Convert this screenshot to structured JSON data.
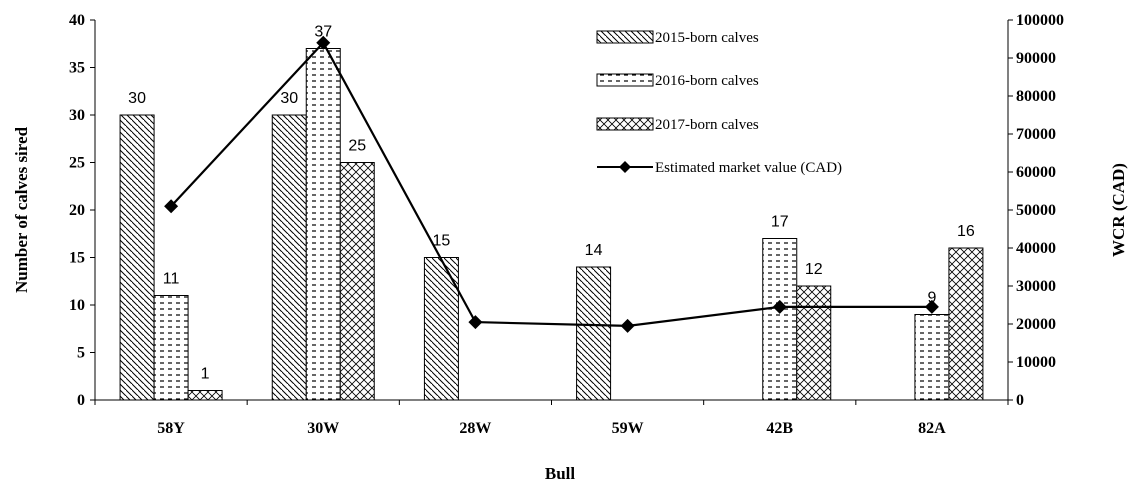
{
  "chart_data": {
    "type": "bar",
    "categories": [
      "58Y",
      "30W",
      "28W",
      "59W",
      "42B",
      "82A"
    ],
    "series": [
      {
        "name": "2015-born calves",
        "kind": "bar",
        "pattern": "diagonal-down",
        "values": [
          30,
          30,
          15,
          14,
          0,
          0
        ]
      },
      {
        "name": "2016-born calves",
        "kind": "bar",
        "pattern": "dashed-horizontal",
        "values": [
          11,
          37,
          0,
          0,
          17,
          9
        ]
      },
      {
        "name": "2017-born calves",
        "kind": "bar",
        "pattern": "crosshatch",
        "values": [
          1,
          25,
          0,
          0,
          12,
          16
        ]
      },
      {
        "name": "Estimated market value (CAD)",
        "kind": "line",
        "marker": "diamond",
        "axis": "right",
        "values": [
          51000,
          94000,
          20500,
          19500,
          24500,
          24500
        ]
      }
    ],
    "data_labels": [
      {
        "category": "58Y",
        "series": 0,
        "text": "30"
      },
      {
        "category": "58Y",
        "series": 1,
        "text": "11"
      },
      {
        "category": "58Y",
        "series": 2,
        "text": "1"
      },
      {
        "category": "30W",
        "series": 0,
        "text": "30"
      },
      {
        "category": "30W",
        "series": 1,
        "text": "37"
      },
      {
        "category": "30W",
        "series": 2,
        "text": "25"
      },
      {
        "category": "28W",
        "series": 0,
        "text": "15"
      },
      {
        "category": "59W",
        "series": 0,
        "text": "14"
      },
      {
        "category": "42B",
        "series": 1,
        "text": "17"
      },
      {
        "category": "42B",
        "series": 2,
        "text": "12"
      },
      {
        "category": "82A",
        "series": 1,
        "text": "9"
      },
      {
        "category": "82A",
        "series": 2,
        "text": "16"
      }
    ],
    "xlabel": "Bull",
    "ylabel": "Number of calves sired",
    "y2label": "WCR (CAD)",
    "ylim": [
      0,
      40
    ],
    "yticks": [
      0,
      5,
      10,
      15,
      20,
      25,
      30,
      35,
      40
    ],
    "y2lim": [
      0,
      100000
    ],
    "y2ticks": [
      0,
      10000,
      20000,
      30000,
      40000,
      50000,
      60000,
      70000,
      80000,
      90000,
      100000
    ],
    "grid": false,
    "legend_position": "top-right"
  }
}
